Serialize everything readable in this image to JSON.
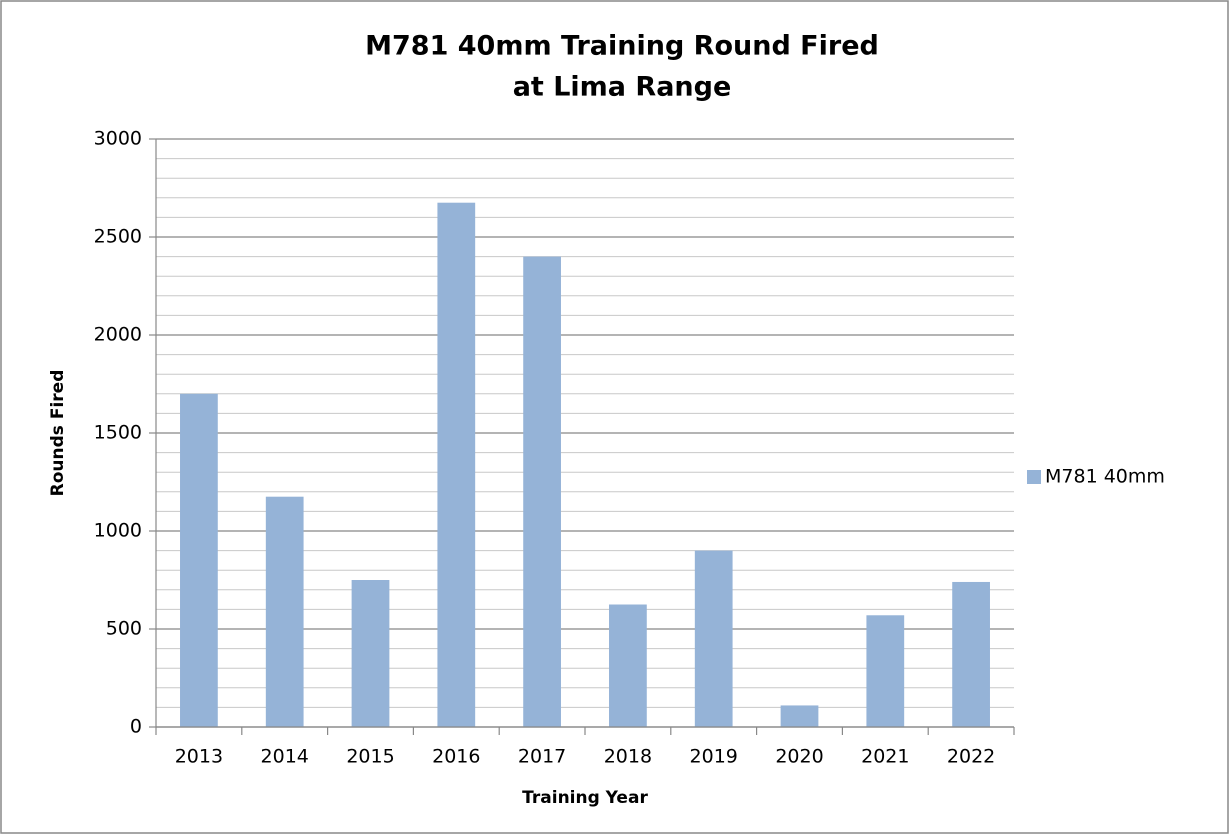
{
  "chart_data": {
    "type": "bar",
    "title": [
      "M781 40mm Training Round Fired",
      "at Lima Range"
    ],
    "x_label": "Training Year",
    "y_label": "Rounds Fired",
    "categories": [
      "2013",
      "2014",
      "2015",
      "2016",
      "2017",
      "2018",
      "2019",
      "2020",
      "2021",
      "2022"
    ],
    "series": [
      {
        "name": "M781 40mm",
        "color": "#95b3d7",
        "values": [
          1700,
          1175,
          750,
          2675,
          2400,
          625,
          900,
          110,
          570,
          740
        ]
      }
    ],
    "ylim": [
      0,
      3000
    ],
    "yticks": [
      0,
      500,
      1000,
      1500,
      2000,
      2500,
      3000
    ],
    "minor_grid_step": 100,
    "grid": true,
    "legend": "right"
  }
}
